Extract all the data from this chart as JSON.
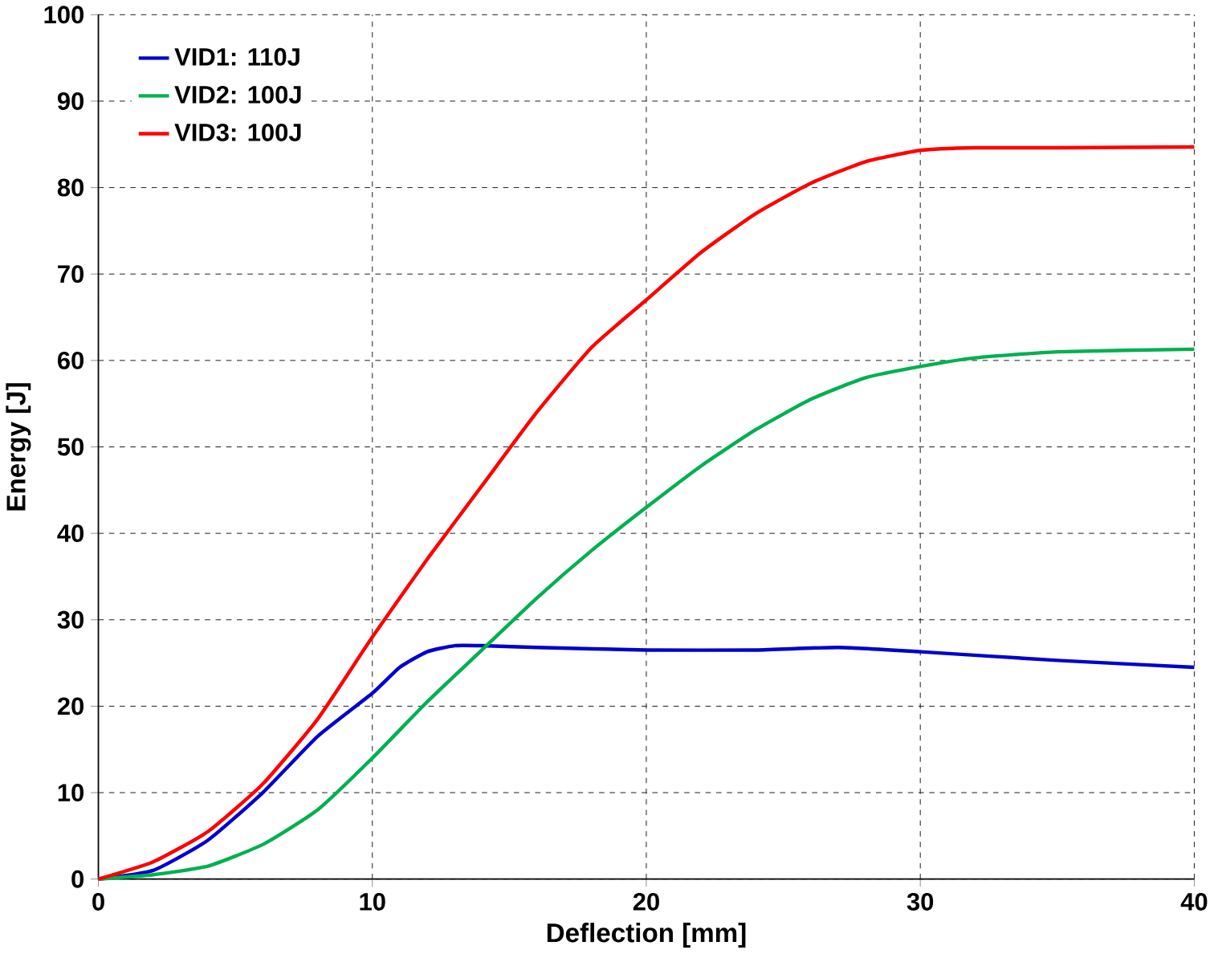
{
  "chart_data": {
    "type": "line",
    "xlabel": "Deflection [mm]",
    "ylabel": "Energy [J]",
    "xlim": [
      0,
      40
    ],
    "ylim": [
      0,
      100
    ],
    "xticks": [
      0,
      10,
      20,
      30,
      40
    ],
    "yticks": [
      0,
      10,
      20,
      30,
      40,
      50,
      60,
      70,
      80,
      90,
      100
    ],
    "grid": true,
    "legend": "top left",
    "line_style": "solid",
    "marker": "none",
    "series": [
      {
        "name": "VID1: 110J",
        "color": "#0000cc",
        "x": [
          0,
          2,
          4,
          6,
          8,
          10,
          11,
          12,
          13,
          14,
          16,
          20,
          24,
          27,
          30,
          35,
          40
        ],
        "values": [
          0,
          1,
          4.5,
          10,
          16.5,
          21.5,
          24.5,
          26.3,
          27,
          27,
          26.8,
          26.5,
          26.5,
          26.8,
          26.3,
          25.3,
          24.5
        ]
      },
      {
        "name": "VID2: 100J",
        "color": "#00b050",
        "x": [
          0,
          2,
          4,
          6,
          8,
          10,
          12,
          14,
          16,
          18,
          20,
          22,
          24,
          26,
          28,
          30,
          32,
          35,
          40
        ],
        "values": [
          0,
          0.5,
          1.5,
          4,
          8,
          14,
          20.5,
          26.5,
          32.5,
          38,
          43,
          47.8,
          52,
          55.5,
          58,
          59.3,
          60.3,
          61,
          61.3
        ]
      },
      {
        "name": "VID3: 100J",
        "color": "#ff0000",
        "x": [
          0,
          2,
          4,
          6,
          8,
          10,
          12,
          14,
          16,
          18,
          20,
          22,
          24,
          26,
          28,
          30,
          32,
          35,
          40
        ],
        "values": [
          0,
          2,
          5.5,
          11,
          18.5,
          28,
          37,
          45.5,
          54,
          61.5,
          67,
          72.5,
          77,
          80.5,
          83,
          84.3,
          84.6,
          84.6,
          84.7
        ]
      }
    ]
  }
}
